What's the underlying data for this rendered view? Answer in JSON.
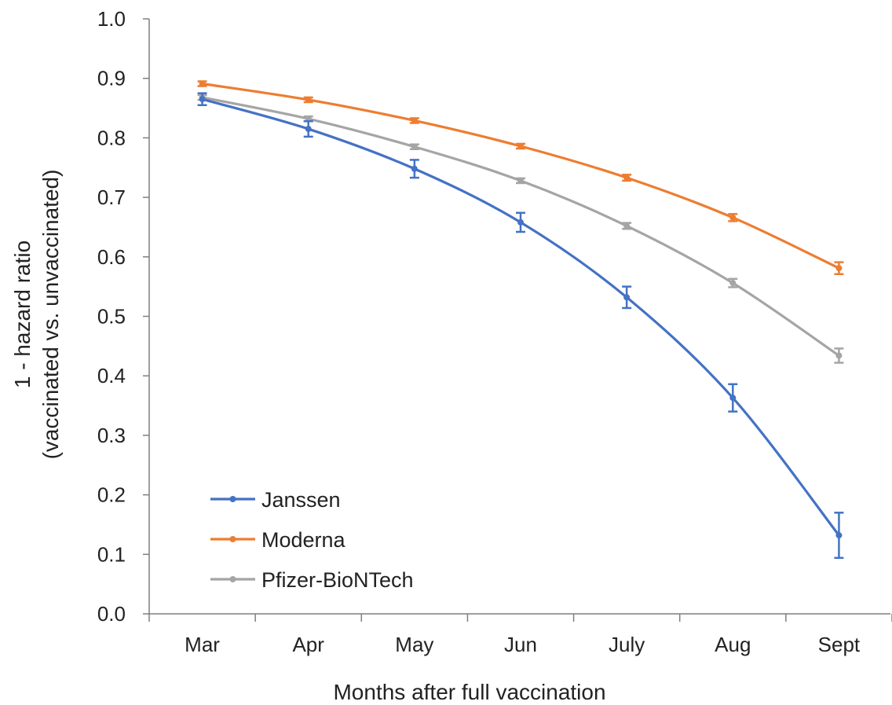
{
  "chart_data": {
    "type": "line",
    "title": "",
    "xlabel": "Months after full vaccination",
    "ylabel": [
      "1 - hazard ratio",
      "(vaccinated vs. unvaccinated)"
    ],
    "categories": [
      "Mar",
      "Apr",
      "May",
      "Jun",
      "July",
      "Aug",
      "Sept"
    ],
    "ylim": [
      0,
      1.0
    ],
    "yticks": [
      "0.0",
      "0.1",
      "0.2",
      "0.3",
      "0.4",
      "0.5",
      "0.6",
      "0.7",
      "0.8",
      "0.9",
      "1.0"
    ],
    "grid": false,
    "legend_position": "bottom-left",
    "series": [
      {
        "name": "Janssen",
        "color": "#4472c4",
        "values": [
          0.865,
          0.815,
          0.748,
          0.658,
          0.532,
          0.363,
          0.132
        ],
        "err": [
          0.01,
          0.013,
          0.015,
          0.016,
          0.018,
          0.023,
          0.038
        ]
      },
      {
        "name": "Moderna",
        "color": "#ed7d31",
        "values": [
          0.891,
          0.864,
          0.829,
          0.786,
          0.733,
          0.666,
          0.581
        ],
        "err": [
          0.004,
          0.004,
          0.004,
          0.004,
          0.005,
          0.006,
          0.01
        ]
      },
      {
        "name": "Pfizer-BioNTech",
        "color": "#a5a5a5",
        "values": [
          0.868,
          0.832,
          0.785,
          0.728,
          0.652,
          0.556,
          0.434
        ],
        "err": [
          0.004,
          0.004,
          0.004,
          0.004,
          0.005,
          0.007,
          0.012
        ]
      }
    ]
  }
}
